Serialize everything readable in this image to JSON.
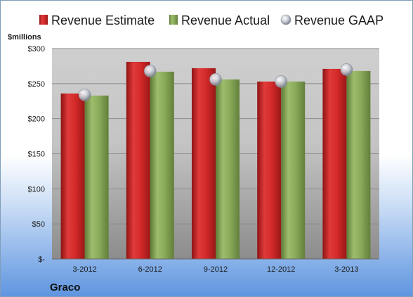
{
  "chart_data": {
    "type": "bar",
    "title": "",
    "xlabel": "",
    "ylabel": "$millions",
    "ylim": [
      0,
      300
    ],
    "yticks": [
      0,
      50,
      100,
      150,
      200,
      250,
      300
    ],
    "ytick_labels": [
      "$-",
      "$50",
      "$100",
      "$150",
      "$200",
      "$250",
      "$300"
    ],
    "categories": [
      "3-2012",
      "6-2012",
      "9-2012",
      "12-2012",
      "3-2013"
    ],
    "series": [
      {
        "name": "Revenue Estimate",
        "kind": "bar",
        "color": "#d42a2a",
        "values": [
          236,
          281,
          272,
          253,
          271
        ]
      },
      {
        "name": "Revenue Actual",
        "kind": "bar",
        "color": "#8aab5a",
        "values": [
          233,
          267,
          256,
          253,
          268
        ]
      },
      {
        "name": "Revenue GAAP",
        "kind": "marker",
        "color": "#c8ccd4",
        "values": [
          234,
          268,
          256,
          253,
          270
        ]
      }
    ],
    "grid": true,
    "legend_position": "top",
    "company": "Graco"
  }
}
